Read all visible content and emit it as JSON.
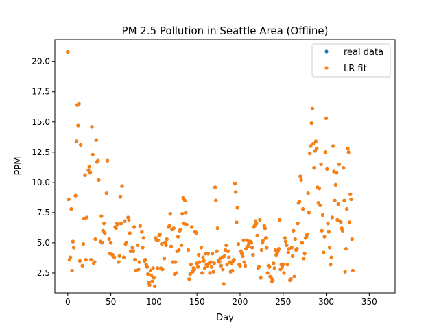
{
  "chart_data": {
    "type": "scatter",
    "title": "PM 2.5 Pollution in Seattle Area (Offline)",
    "xlabel": "Day",
    "ylabel": "PPM",
    "xlim": [
      -15,
      380
    ],
    "ylim": [
      0.85,
      21.8
    ],
    "xticks": [
      0,
      50,
      100,
      150,
      200,
      250,
      300,
      350
    ],
    "yticks": [
      2.5,
      5.0,
      7.5,
      10.0,
      12.5,
      15.0,
      17.5,
      20.0
    ],
    "grid": false,
    "legend_position": "top-right",
    "series": [
      {
        "name": "real data",
        "color": "#1f77b4",
        "marker": "dot",
        "points": [
          [
            0,
            20.8
          ],
          [
            1,
            8.6
          ],
          [
            2,
            3.6
          ],
          [
            3,
            3.8
          ],
          [
            4,
            7.8
          ],
          [
            5,
            2.7
          ],
          [
            6,
            5.1
          ],
          [
            7,
            4.6
          ],
          [
            9,
            8.9
          ],
          [
            10,
            13.4
          ],
          [
            11,
            16.4
          ],
          [
            12,
            14.7
          ],
          [
            13,
            16.5
          ],
          [
            14,
            3.5
          ],
          [
            15,
            13.1
          ],
          [
            17,
            3.1
          ],
          [
            18,
            4.9
          ],
          [
            19,
            7.0
          ],
          [
            20,
            10.6
          ],
          [
            21,
            3.6
          ],
          [
            22,
            7.1
          ],
          [
            24,
            11.0
          ],
          [
            25,
            11.3
          ],
          [
            26,
            10.8
          ],
          [
            27,
            3.6
          ],
          [
            28,
            14.6
          ],
          [
            29,
            12.3
          ],
          [
            30,
            3.3
          ],
          [
            31,
            3.4
          ],
          [
            32,
            5.3
          ],
          [
            33,
            13.5
          ],
          [
            34,
            11.7
          ],
          [
            35,
            11.8
          ],
          [
            36,
            10.2
          ],
          [
            38,
            5.1
          ],
          [
            39,
            7.2
          ],
          [
            40,
            5.0
          ],
          [
            41,
            6.0
          ],
          [
            42,
            6.6
          ],
          [
            43,
            5.8
          ],
          [
            45,
            9.1
          ],
          [
            46,
            11.8
          ],
          [
            48,
            5.3
          ],
          [
            49,
            4.1
          ],
          [
            50,
            5.0
          ],
          [
            52,
            4.0
          ],
          [
            54,
            3.8
          ],
          [
            55,
            6.3
          ],
          [
            56,
            6.2
          ],
          [
            57,
            6.6
          ],
          [
            58,
            6.5
          ],
          [
            59,
            3.4
          ],
          [
            60,
            3.9
          ],
          [
            61,
            8.8
          ],
          [
            62,
            6.6
          ],
          [
            63,
            9.7
          ],
          [
            65,
            3.8
          ],
          [
            66,
            6.8
          ],
          [
            67,
            4.9
          ],
          [
            68,
            5.0
          ],
          [
            70,
            7.1
          ],
          [
            71,
            6.9
          ],
          [
            72,
            5.8
          ],
          [
            73,
            4.3
          ],
          [
            75,
            4.6
          ],
          [
            76,
            4.3
          ],
          [
            77,
            6.3
          ],
          [
            78,
            3.6
          ],
          [
            79,
            2.7
          ],
          [
            81,
            4.8
          ],
          [
            82,
            2.8
          ],
          [
            83,
            3.4
          ],
          [
            84,
            6.4
          ],
          [
            86,
            5.9
          ],
          [
            87,
            4.6
          ],
          [
            88,
            5.4
          ],
          [
            89,
            3.5
          ],
          [
            90,
            3.6
          ],
          [
            91,
            3.2
          ],
          [
            92,
            3.0
          ],
          [
            93,
            2.4
          ],
          [
            94,
            1.7
          ],
          [
            95,
            1.5
          ],
          [
            96,
            2.7
          ],
          [
            97,
            2.3
          ],
          [
            98,
            1.8
          ],
          [
            99,
            2.9
          ],
          [
            100,
            2.1
          ],
          [
            101,
            1.4
          ],
          [
            102,
            5.4
          ],
          [
            103,
            5.2
          ],
          [
            104,
            2.9
          ],
          [
            105,
            5.2
          ],
          [
            106,
            5.6
          ],
          [
            107,
            5.7
          ],
          [
            108,
            2.9
          ],
          [
            109,
            4.9
          ],
          [
            110,
            2.8
          ],
          [
            112,
            3.7
          ],
          [
            113,
            5.0
          ],
          [
            114,
            4.8
          ],
          [
            115,
            5.3
          ],
          [
            117,
            6.3
          ],
          [
            118,
            6.4
          ],
          [
            119,
            7.4
          ],
          [
            120,
            4.7
          ],
          [
            121,
            6.1
          ],
          [
            122,
            3.4
          ],
          [
            123,
            6.2
          ],
          [
            124,
            2.4
          ],
          [
            125,
            3.4
          ],
          [
            126,
            2.5
          ],
          [
            127,
            4.3
          ],
          [
            128,
            5.5
          ],
          [
            129,
            4.4
          ],
          [
            130,
            6.0
          ],
          [
            131,
            6.1
          ],
          [
            132,
            4.8
          ],
          [
            133,
            7.4
          ],
          [
            134,
            8.7
          ],
          [
            135,
            6.6
          ],
          [
            136,
            8.5
          ],
          [
            137,
            7.5
          ],
          [
            138,
            6.5
          ],
          [
            140,
            4.4
          ],
          [
            141,
            2.0
          ],
          [
            142,
            2.4
          ],
          [
            143,
            3.2
          ],
          [
            144,
            6.3
          ],
          [
            145,
            2.6
          ],
          [
            146,
            2.9
          ],
          [
            147,
            2.8
          ],
          [
            148,
            5.9
          ],
          [
            149,
            5.8
          ],
          [
            150,
            3.3
          ],
          [
            151,
            3.0
          ],
          [
            152,
            4.0
          ],
          [
            153,
            3.4
          ],
          [
            155,
            4.6
          ],
          [
            156,
            2.5
          ],
          [
            157,
            3.8
          ],
          [
            158,
            3.5
          ],
          [
            159,
            2.9
          ],
          [
            160,
            4.1
          ],
          [
            161,
            3.2
          ],
          [
            162,
            3.1
          ],
          [
            163,
            4.1
          ],
          [
            164,
            3.3
          ],
          [
            165,
            2.5
          ],
          [
            166,
            3.4
          ],
          [
            167,
            3.0
          ],
          [
            168,
            4.1
          ],
          [
            169,
            2.6
          ],
          [
            170,
            3.3
          ],
          [
            171,
            9.6
          ],
          [
            172,
            8.5
          ],
          [
            173,
            4.3
          ],
          [
            174,
            6.2
          ],
          [
            175,
            3.5
          ],
          [
            176,
            3.4
          ],
          [
            177,
            3.7
          ],
          [
            178,
            3.1
          ],
          [
            179,
            3.8
          ],
          [
            180,
            2.8
          ],
          [
            181,
            1.6
          ],
          [
            182,
            3.9
          ],
          [
            183,
            4.4
          ],
          [
            184,
            4.8
          ],
          [
            185,
            3.2
          ],
          [
            186,
            4.3
          ],
          [
            187,
            3.8
          ],
          [
            188,
            3.4
          ],
          [
            189,
            2.6
          ],
          [
            190,
            3.3
          ],
          [
            191,
            2.7
          ],
          [
            192,
            3.5
          ],
          [
            193,
            3.6
          ],
          [
            194,
            9.9
          ],
          [
            195,
            9.2
          ],
          [
            196,
            6.7
          ],
          [
            197,
            7.9
          ],
          [
            198,
            4.9
          ],
          [
            199,
            3.2
          ],
          [
            200,
            3.1
          ],
          [
            201,
            4.3
          ],
          [
            202,
            4.1
          ],
          [
            203,
            3.9
          ],
          [
            204,
            5.2
          ],
          [
            205,
            3.4
          ],
          [
            206,
            3.1
          ],
          [
            207,
            4.5
          ],
          [
            208,
            5.2
          ],
          [
            209,
            4.7
          ],
          [
            210,
            4.9
          ],
          [
            211,
            5.1
          ],
          [
            212,
            5.1
          ],
          [
            213,
            5.0
          ],
          [
            214,
            4.6
          ],
          [
            215,
            4.0
          ],
          [
            216,
            6.3
          ],
          [
            217,
            6.4
          ],
          [
            218,
            6.8
          ],
          [
            219,
            6.6
          ],
          [
            220,
            5.6
          ],
          [
            221,
            2.9
          ],
          [
            222,
            3.0
          ],
          [
            223,
            6.9
          ],
          [
            224,
            2.1
          ],
          [
            225,
            4.4
          ],
          [
            226,
            5.0
          ],
          [
            227,
            5.2
          ],
          [
            228,
            6.4
          ],
          [
            229,
            6.2
          ],
          [
            230,
            5.4
          ],
          [
            231,
            4.6
          ],
          [
            232,
            2.5
          ],
          [
            233,
            3.1
          ],
          [
            234,
            3.0
          ],
          [
            235,
            2.2
          ],
          [
            236,
            2.1
          ],
          [
            237,
            1.8
          ],
          [
            238,
            1.9
          ],
          [
            239,
            3.3
          ],
          [
            240,
            2.9
          ],
          [
            241,
            4.4
          ],
          [
            242,
            4.0
          ],
          [
            243,
            4.1
          ],
          [
            244,
            4.3
          ],
          [
            245,
            4.5
          ],
          [
            246,
            6.9
          ],
          [
            247,
            2.8
          ],
          [
            248,
            3.2
          ],
          [
            249,
            3.0
          ],
          [
            250,
            3.2
          ],
          [
            251,
            2.5
          ],
          [
            252,
            5.4
          ],
          [
            253,
            5.1
          ],
          [
            254,
            4.8
          ],
          [
            255,
            3.2
          ],
          [
            256,
            4.2
          ],
          [
            257,
            4.5
          ],
          [
            258,
            1.9
          ],
          [
            259,
            2.0
          ],
          [
            260,
            4.6
          ],
          [
            261,
            3.9
          ],
          [
            262,
            6.0
          ],
          [
            263,
            2.2
          ],
          [
            264,
            5.3
          ],
          [
            265,
            4.4
          ],
          [
            266,
            4.5
          ],
          [
            267,
            6.6
          ],
          [
            268,
            8.3
          ],
          [
            269,
            8.4
          ],
          [
            270,
            10.5
          ],
          [
            271,
            10.2
          ],
          [
            272,
            5.0
          ],
          [
            273,
            7.8
          ],
          [
            274,
            3.7
          ],
          [
            275,
            4.1
          ],
          [
            276,
            5.4
          ],
          [
            277,
            5.5
          ],
          [
            278,
            5.7
          ],
          [
            279,
            9.1
          ],
          [
            280,
            7.5
          ],
          [
            281,
            12.4
          ],
          [
            282,
            13.0
          ],
          [
            283,
            14.9
          ],
          [
            284,
            16.1
          ],
          [
            285,
            13.2
          ],
          [
            286,
            11.2
          ],
          [
            287,
            12.6
          ],
          [
            288,
            13.4
          ],
          [
            289,
            12.8
          ],
          [
            290,
            9.6
          ],
          [
            291,
            8.3
          ],
          [
            292,
            9.5
          ],
          [
            293,
            8.1
          ],
          [
            294,
            11.5
          ],
          [
            295,
            6.0
          ],
          [
            296,
            7.3
          ],
          [
            297,
            4.2
          ],
          [
            298,
            5.5
          ],
          [
            299,
            12.5
          ],
          [
            300,
            15.3
          ],
          [
            301,
            11.1
          ],
          [
            302,
            6.6
          ],
          [
            303,
            5.9
          ],
          [
            304,
            4.6
          ],
          [
            305,
            3.2
          ],
          [
            306,
            3.8
          ],
          [
            307,
            7.1
          ],
          [
            308,
            13.0
          ],
          [
            309,
            10.9
          ],
          [
            310,
            8.5
          ],
          [
            311,
            9.8
          ],
          [
            312,
            10.8
          ],
          [
            313,
            6.9
          ],
          [
            314,
            8.2
          ],
          [
            315,
            11.5
          ],
          [
            316,
            6.8
          ],
          [
            317,
            6.7
          ],
          [
            318,
            6.2
          ],
          [
            319,
            6.0
          ],
          [
            320,
            11.2
          ],
          [
            321,
            8.5
          ],
          [
            322,
            2.6
          ],
          [
            323,
            4.5
          ],
          [
            324,
            7.8
          ],
          [
            325,
            12.8
          ],
          [
            326,
            12.5
          ],
          [
            327,
            6.7
          ],
          [
            328,
            9.0
          ],
          [
            329,
            8.6
          ],
          [
            330,
            5.3
          ],
          [
            331,
            2.7
          ]
        ]
      },
      {
        "name": "LR fit",
        "color": "#ff7f0e",
        "marker": "dot"
      }
    ]
  }
}
